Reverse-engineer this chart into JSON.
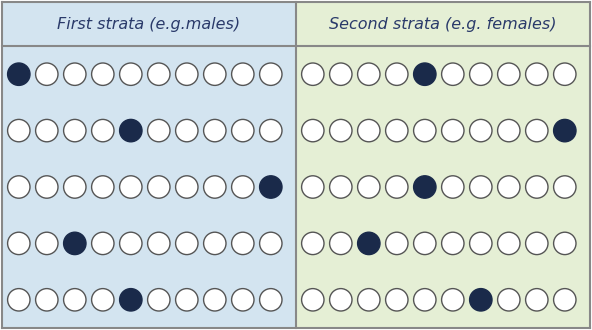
{
  "title_left": "First strata (e.g.males)",
  "title_right": "Second strata (e.g. females)",
  "bg_left": "#d3e4f0",
  "bg_right": "#e5efd5",
  "border_color": "#888888",
  "circle_empty_face": "#ffffff",
  "circle_empty_edge": "#555555",
  "circle_filled_face": "#1a2a4a",
  "circle_filled_edge": "#1a2a4a",
  "n_rows": 5,
  "n_cols": 10,
  "filled_left": [
    0,
    4,
    9,
    2,
    4
  ],
  "filled_right": [
    4,
    9,
    4,
    2,
    6
  ],
  "title_fontsize": 11.5,
  "fig_width": 5.92,
  "fig_height": 3.3,
  "dpi": 100
}
